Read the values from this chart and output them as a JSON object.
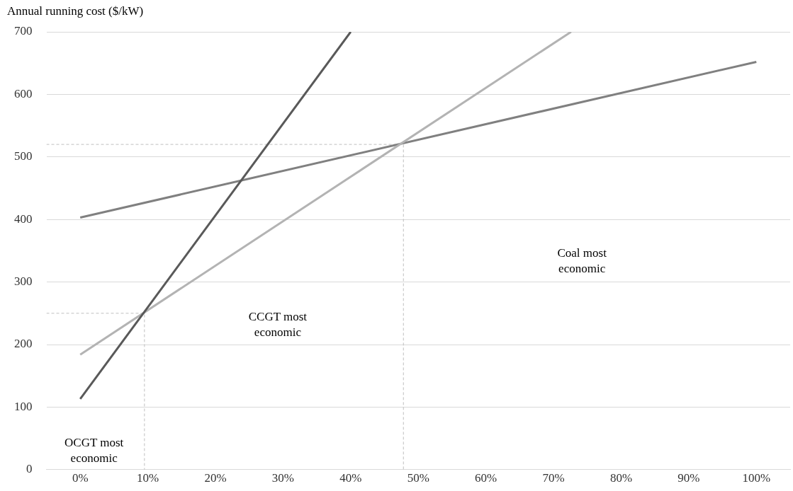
{
  "chart_data": {
    "type": "line",
    "ylabel": "Annual running cost ($/kW)",
    "xlim": [
      -5,
      105
    ],
    "xticks": [
      {
        "value": 0,
        "label": "0%"
      },
      {
        "value": 10,
        "label": "10%"
      },
      {
        "value": 20,
        "label": "20%"
      },
      {
        "value": 30,
        "label": "30%"
      },
      {
        "value": 40,
        "label": "40%"
      },
      {
        "value": 50,
        "label": "50%"
      },
      {
        "value": 60,
        "label": "60%"
      },
      {
        "value": 70,
        "label": "70%"
      },
      {
        "value": 80,
        "label": "80%"
      },
      {
        "value": 90,
        "label": "90%"
      },
      {
        "value": 100,
        "label": "100%"
      }
    ],
    "ylim": [
      0,
      700
    ],
    "yticks": [
      0,
      100,
      200,
      300,
      400,
      500,
      600,
      700
    ],
    "grid": "y",
    "marker": "none",
    "series": [
      {
        "color": "#595959",
        "x": [
          0,
          40
        ],
        "values": [
          113,
          700
        ]
      },
      {
        "color": "#b3b3b3",
        "x": [
          0,
          72.6
        ],
        "values": [
          184,
          700
        ]
      },
      {
        "color": "#808080",
        "x": [
          0,
          100
        ],
        "values": [
          403,
          652
        ]
      },
      {
        "color": "#bfbfbf",
        "line_style": "dashed",
        "x": [
          -5,
          9.5,
          9.5
        ],
        "values": [
          250,
          250,
          0
        ]
      },
      {
        "color": "#bfbfbf",
        "line_style": "dashed",
        "x": [
          -5,
          47.8,
          47.8
        ],
        "values": [
          520,
          520,
          0
        ]
      }
    ],
    "annotations": [
      "OCGT most economic",
      "CCGT most economic",
      "Coal most economic"
    ]
  }
}
